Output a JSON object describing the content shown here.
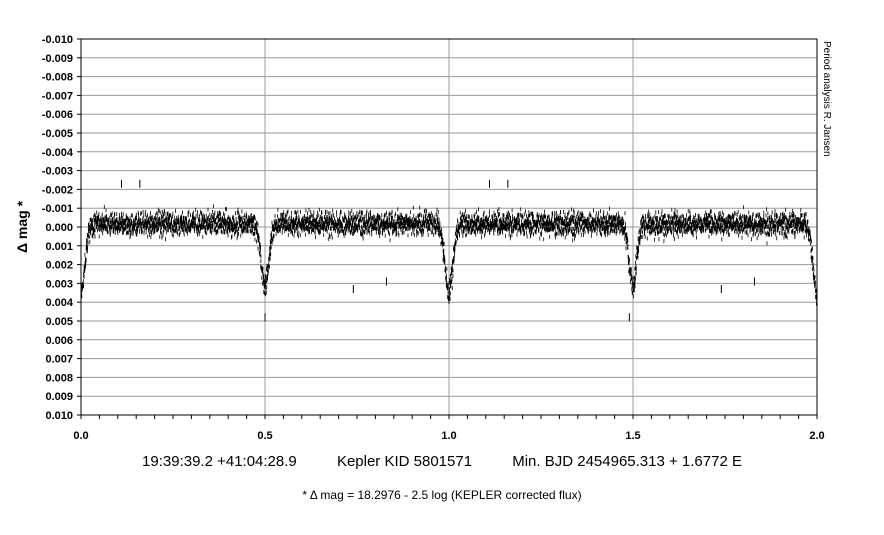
{
  "chart_data": {
    "type": "scatter",
    "xlabel": "",
    "ylabel": "Δ mag *",
    "xlim": [
      0.0,
      2.0
    ],
    "ylim": [
      -0.01,
      0.01
    ],
    "y_inverted": true,
    "grid": true,
    "x_ticks": [
      "0.0",
      "0.5",
      "1.0",
      "1.5",
      "2.0"
    ],
    "y_ticks": [
      "-0.010",
      "-0.009",
      "-0.008",
      "-0.007",
      "-0.006",
      "-0.005",
      "-0.004",
      "-0.003",
      "-0.002",
      "-0.001",
      "0.000",
      "0.001",
      "0.002",
      "0.003",
      "0.004",
      "0.005",
      "0.006",
      "0.007",
      "0.008",
      "0.009",
      "0.010"
    ],
    "series": [
      {
        "values_summary": "phase-folded light curve (repeated twice over 0–2): out-of-eclipse scatter between about -0.0018 and +0.0018 centred near 0.000; primary minimum at phase 0.0/1.0/2.0 reaching about 0.0045–0.005; secondary minimum at phase 0.5/1.5 reaching about 0.004–0.0047",
        "eclipses": [
          {
            "phase": 0.0,
            "depth": 0.0045
          },
          {
            "phase": 0.5,
            "depth": 0.0041
          },
          {
            "phase": 1.0,
            "depth": 0.0045
          },
          {
            "phase": 1.5,
            "depth": 0.0041
          },
          {
            "phase": 2.0,
            "depth": 0.0048
          }
        ],
        "outliers": [
          {
            "x": 0.11,
            "y": -0.0023
          },
          {
            "x": 0.16,
            "y": -0.0023
          },
          {
            "x": 0.74,
            "y": 0.0033
          },
          {
            "x": 0.83,
            "y": 0.0029
          },
          {
            "x": 0.5,
            "y": 0.0048
          },
          {
            "x": 1.49,
            "y": 0.0048
          },
          {
            "x": 1.74,
            "y": 0.0033
          },
          {
            "x": 1.83,
            "y": 0.0029
          },
          {
            "x": 1.11,
            "y": -0.0023
          },
          {
            "x": 1.16,
            "y": -0.0023
          }
        ]
      }
    ]
  },
  "side_note": "Period analysis  R. Jansen",
  "caption": {
    "coords": "19:39:39.2 +41:04:28.9",
    "target": "Kepler KID 5801571",
    "ephemeris": "Min. BJD 2454965.313 + 1.6772 E",
    "footnote": "* Δ mag = 18.2976 - 2.5 log (KEPLER corrected flux)"
  }
}
